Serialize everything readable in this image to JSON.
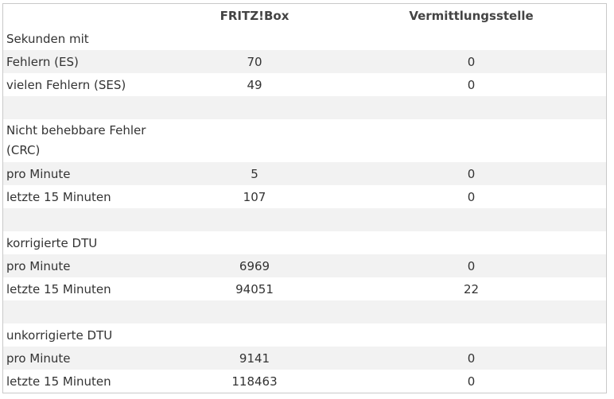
{
  "header": {
    "col_label": "",
    "col_fritzbox": "FRITZ!Box",
    "col_exchange": "Vermittlungsstelle"
  },
  "sections": {
    "seconds": {
      "title": "Sekunden mit",
      "rows": [
        {
          "label": "Fehlern (ES)",
          "fritzbox": "70",
          "exchange": "0"
        },
        {
          "label": "vielen Fehlern (SES)",
          "fritzbox": "49",
          "exchange": "0"
        }
      ]
    },
    "crc": {
      "title": "Nicht behebbare Fehler (CRC)",
      "rows": [
        {
          "label": "pro Minute",
          "fritzbox": "5",
          "exchange": "0"
        },
        {
          "label": "letzte 15 Minuten",
          "fritzbox": "107",
          "exchange": "0"
        }
      ]
    },
    "corrected_dtu": {
      "title": "korrigierte DTU",
      "rows": [
        {
          "label": "pro Minute",
          "fritzbox": "6969",
          "exchange": "0"
        },
        {
          "label": "letzte 15 Minuten",
          "fritzbox": "94051",
          "exchange": "22"
        }
      ]
    },
    "uncorrected_dtu": {
      "title": "unkorrigierte DTU",
      "rows": [
        {
          "label": "pro Minute",
          "fritzbox": "9141",
          "exchange": "0"
        },
        {
          "label": "letzte 15 Minuten",
          "fritzbox": "118463",
          "exchange": "0"
        }
      ]
    }
  }
}
